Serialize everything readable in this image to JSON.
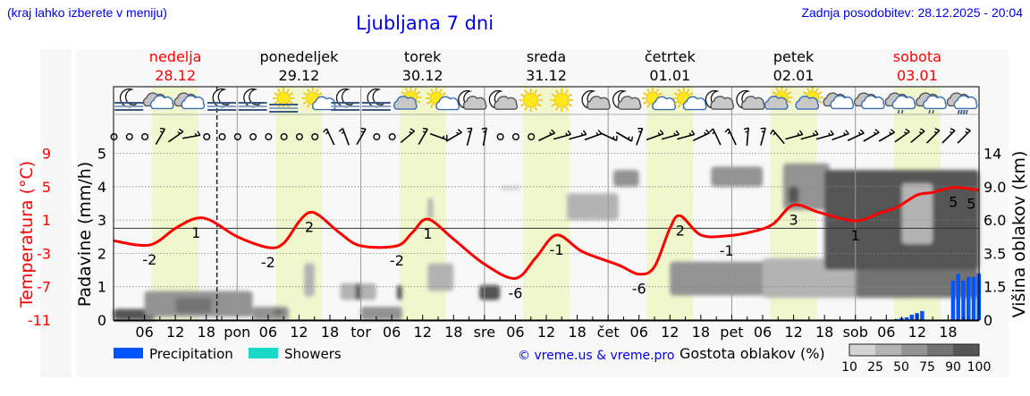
{
  "header": {
    "hint": "(kraj lahko izberete v meniju)",
    "title": "Ljubljana 7 dni",
    "updated": "Zadnja posodobitev: 28.12.2025 - 20:04"
  },
  "days": [
    {
      "name": "nedelja",
      "date": "28.12",
      "weekend": true
    },
    {
      "name": "ponedeljek",
      "date": "29.12",
      "weekend": false
    },
    {
      "name": "torek",
      "date": "30.12",
      "weekend": false
    },
    {
      "name": "sreda",
      "date": "31.12",
      "weekend": false
    },
    {
      "name": "četrtek",
      "date": "01.01",
      "weekend": false
    },
    {
      "name": "petek",
      "date": "02.01",
      "weekend": false
    },
    {
      "name": "sobota",
      "date": "03.01",
      "weekend": true
    }
  ],
  "colors": {
    "temperature": "#ff0000",
    "precipitation": "#0055ff",
    "showers": "#1ad9c6",
    "daylight": "#f0f7cc",
    "link": "#0000ee",
    "cloud_scale": [
      "#d3d3d3",
      "#b3b3b3",
      "#939393",
      "#737373",
      "#555555"
    ]
  },
  "chart_data": {
    "type": "meteogram",
    "title": "Ljubljana 7 dni",
    "x_tick_labels": [
      "06",
      "12",
      "18",
      "pon",
      "06",
      "12",
      "18",
      "tor",
      "06",
      "12",
      "18",
      "sre",
      "06",
      "12",
      "18",
      "čet",
      "06",
      "12",
      "18",
      "pet",
      "06",
      "12",
      "18",
      "sob",
      "06",
      "12",
      "18"
    ],
    "current_time": "28.12 20:04",
    "daylight": {
      "from": "07:30",
      "to": "16:30"
    },
    "axes": {
      "temperature": {
        "label": "Temperatura (°C)",
        "ticks": [
          9,
          5,
          1,
          -3,
          -7,
          -11
        ],
        "range": [
          -11,
          9
        ]
      },
      "precipitation": {
        "label": "Padavine (mm/h)",
        "ticks": [
          0,
          1,
          2,
          3,
          4,
          5
        ],
        "range": [
          0,
          5
        ]
      },
      "cloud_height": {
        "label": "Višina oblakov (km)",
        "ticks": [
          0,
          1.5,
          3.5,
          6.0,
          9.0,
          14
        ],
        "tick_labels": [
          "0",
          "1.5",
          "3.5",
          "6.0",
          "9.0",
          "14"
        ]
      }
    },
    "grid": true,
    "freezing_line": 0,
    "temperature": [
      [
        "28.12 00:00",
        -1.5
      ],
      [
        "28.12 07:00",
        -2.0
      ],
      [
        "28.12 12:00",
        0.0
      ],
      [
        "28.12 16:00",
        1.2
      ],
      [
        "28.12 19:00",
        0.9
      ],
      [
        "29.12 00:00",
        -1.0
      ],
      [
        "29.12 06:00",
        -2.3
      ],
      [
        "29.12 09:00",
        -1.8
      ],
      [
        "29.12 12:00",
        0.8
      ],
      [
        "29.12 14:00",
        1.9
      ],
      [
        "29.12 16:00",
        1.5
      ],
      [
        "29.12 20:00",
        -0.6
      ],
      [
        "30.12 00:00",
        -2.1
      ],
      [
        "30.12 07:00",
        -2.1
      ],
      [
        "30.12 10:00",
        -0.5
      ],
      [
        "30.12 13:00",
        1.1
      ],
      [
        "30.12 18:00",
        -1.3
      ],
      [
        "31.12 00:00",
        -4.3
      ],
      [
        "31.12 06:00",
        -6.0
      ],
      [
        "31.12 10:00",
        -3.5
      ],
      [
        "31.12 14:00",
        -0.8
      ],
      [
        "31.12 19:00",
        -2.8
      ],
      [
        "01.01 02:00",
        -4.4
      ],
      [
        "01.01 06:00",
        -5.5
      ],
      [
        "01.01 09:00",
        -4.6
      ],
      [
        "01.01 12:00",
        0.0
      ],
      [
        "01.01 14:00",
        1.5
      ],
      [
        "01.01 18:00",
        -0.8
      ],
      [
        "01.01 23:00",
        -0.9
      ],
      [
        "02.01 04:00",
        -0.4
      ],
      [
        "02.01 08:00",
        0.5
      ],
      [
        "02.01 12:00",
        2.8
      ],
      [
        "02.01 17:00",
        1.9
      ],
      [
        "03.01 00:00",
        0.9
      ],
      [
        "03.01 05:00",
        1.9
      ],
      [
        "03.01 08:00",
        2.5
      ],
      [
        "03.01 12:00",
        4.0
      ],
      [
        "03.01 15:00",
        4.3
      ],
      [
        "03.01 19:00",
        4.9
      ],
      [
        "04.01 00:00",
        4.6
      ]
    ],
    "temperature_labels": [
      [
        "28.12 07:00",
        "-2"
      ],
      [
        "28.12 16:00",
        "1"
      ],
      [
        "29.12 06:00",
        "-2"
      ],
      [
        "29.12 14:00",
        "2"
      ],
      [
        "30.12 07:00",
        "-2"
      ],
      [
        "30.12 13:00",
        "1"
      ],
      [
        "31.12 06:00",
        "-6"
      ],
      [
        "31.12 14:00",
        "-1"
      ],
      [
        "01.01 06:00",
        "-6"
      ],
      [
        "01.01 14:00",
        "2"
      ],
      [
        "01.01 23:00",
        "-1"
      ],
      [
        "02.01 12:00",
        "3"
      ],
      [
        "03.01 00:00",
        "1"
      ],
      [
        "03.01 19:00",
        "5"
      ],
      [
        "03.01 22:30",
        "5"
      ]
    ],
    "precipitation": [
      [
        "03.01 08:00",
        0.03
      ],
      [
        "03.01 09:00",
        0.06
      ],
      [
        "03.01 10:00",
        0.08
      ],
      [
        "03.01 11:00",
        0.16
      ],
      [
        "03.01 12:00",
        0.21
      ],
      [
        "03.01 13:00",
        0.27
      ],
      [
        "03.01 19:00",
        1.18
      ],
      [
        "03.01 20:00",
        1.39
      ],
      [
        "03.01 21:00",
        1.18
      ],
      [
        "03.01 22:00",
        1.29
      ],
      [
        "03.01 23:00",
        1.29
      ],
      [
        "04.01 00:00",
        1.39
      ]
    ],
    "showers": [],
    "cloud_density": [
      {
        "from": "28.12 00:00",
        "to": "28.12 08:00",
        "base_km": 0,
        "top_km": 0.5,
        "pct": 90
      },
      {
        "from": "28.12 06:00",
        "to": "29.12 03:00",
        "base_km": 0.15,
        "top_km": 1.3,
        "pct": 50
      },
      {
        "from": "28.12 12:00",
        "to": "28.12 19:00",
        "base_km": 0.3,
        "top_km": 1.0,
        "pct": 75
      },
      {
        "from": "29.12 03:00",
        "to": "29.12 10:00",
        "base_km": 0,
        "top_km": 0.6,
        "pct": 50
      },
      {
        "from": "29.12 07:00",
        "to": "29.12 09:00",
        "base_km": 0.2,
        "top_km": 0.5,
        "pct": 75
      },
      {
        "from": "29.12 13:00",
        "to": "29.12 15:00",
        "base_km": 1.05,
        "top_km": 2.9,
        "pct": 25
      },
      {
        "from": "29.12 20:00",
        "to": "30.12 03:00",
        "base_km": 0.9,
        "top_km": 1.7,
        "pct": 25
      },
      {
        "from": "29.12 23:00",
        "to": "30.12 00:00",
        "base_km": 0.9,
        "top_km": 1.7,
        "pct": 90
      },
      {
        "from": "30.12 00:00",
        "to": "30.12 08:00",
        "base_km": 0,
        "top_km": 0.6,
        "pct": 50
      },
      {
        "from": "30.12 07:00",
        "to": "30.12 08:00",
        "base_km": 0.9,
        "top_km": 1.6,
        "pct": 90
      },
      {
        "from": "30.12 13:00",
        "to": "30.12 18:00",
        "base_km": 1.3,
        "top_km": 2.9,
        "pct": 25
      },
      {
        "from": "30.12 13:00",
        "to": "30.12 14:00",
        "base_km": 6.0,
        "top_km": 8.0,
        "pct": 25
      },
      {
        "from": "30.12 23:00",
        "to": "31.12 03:00",
        "base_km": 0.9,
        "top_km": 1.6,
        "pct": 90
      },
      {
        "from": "31.12 03:00",
        "to": "31.12 07:00",
        "base_km": 8.7,
        "top_km": 9.1,
        "pct": 10
      },
      {
        "from": "31.12 16:00",
        "to": "01.01 02:00",
        "base_km": 6.0,
        "top_km": 8.4,
        "pct": 25
      },
      {
        "from": "01.01 01:00",
        "to": "01.01 06:00",
        "base_km": 9.0,
        "top_km": 11.5,
        "pct": 50
      },
      {
        "from": "01.01 20:00",
        "to": "02.01 06:00",
        "base_km": 9.0,
        "top_km": 12.0,
        "pct": 50
      },
      {
        "from": "01.01 12:00",
        "to": "03.01 00:00",
        "base_km": 1.1,
        "top_km": 3.0,
        "pct": 50
      },
      {
        "from": "02.01 06:00",
        "to": "03.01 12:00",
        "base_km": 1.0,
        "top_km": 3.2,
        "pct": 25
      },
      {
        "from": "02.01 10:00",
        "to": "02.01 19:00",
        "base_km": 6.9,
        "top_km": 12.5,
        "pct": 50
      },
      {
        "from": "02.01 11:00",
        "to": "02.01 13:00",
        "base_km": 7.5,
        "top_km": 9.0,
        "pct": 90
      },
      {
        "from": "02.01 18:00",
        "to": "04.01 00:00",
        "base_km": 2.5,
        "top_km": 11.5,
        "pct": 90
      },
      {
        "from": "03.01 09:00",
        "to": "03.01 15:00",
        "base_km": 4.2,
        "top_km": 9.5,
        "pct": 25
      },
      {
        "from": "03.01 00:00",
        "to": "04.01 00:00",
        "base_km": 1.0,
        "top_km": 2.5,
        "pct": 75
      }
    ],
    "weather_icons": [
      "moon-fog",
      "cloud",
      "cloud",
      "moon-fog",
      "moon-fog",
      "sun-fog",
      "sun-small-cloud",
      "moon-fog",
      "moon-fog",
      "cloud-sun",
      "sun-small-cloud",
      "moon-cloud",
      "moon-cloud",
      "sun",
      "sun",
      "moon-cloud",
      "moon-cloud",
      "sun-small-cloud",
      "sun-small-cloud",
      "moon-cloud",
      "moon-cloud",
      "cloud-sun",
      "cloud-sun",
      "cloud",
      "cloud",
      "cloud-light-rain",
      "cloud-light-rain",
      "cloud-rain"
    ],
    "wind_directions": [
      null,
      null,
      null,
      30,
      55,
      80,
      null,
      null,
      null,
      null,
      null,
      null,
      null,
      null,
      335,
      340,
      30,
      null,
      null,
      50,
      30,
      110,
      60,
      15,
      10,
      null,
      null,
      null,
      65,
      75,
      75,
      70,
      115,
      120,
      20,
      70,
      75,
      75,
      65,
      335,
      335,
      5,
      15,
      320,
      75,
      75,
      75,
      70,
      65,
      60,
      60,
      55,
      50,
      45,
      45,
      45
    ]
  },
  "legend": {
    "precipitation": "Precipitation",
    "showers": "Showers",
    "copyright": "© vreme.us & vreme.pro",
    "cloud_density_title": "Gostota oblakov (%)",
    "cloud_scale_labels": [
      "10",
      "25",
      "50",
      "75",
      "90",
      "100"
    ]
  }
}
